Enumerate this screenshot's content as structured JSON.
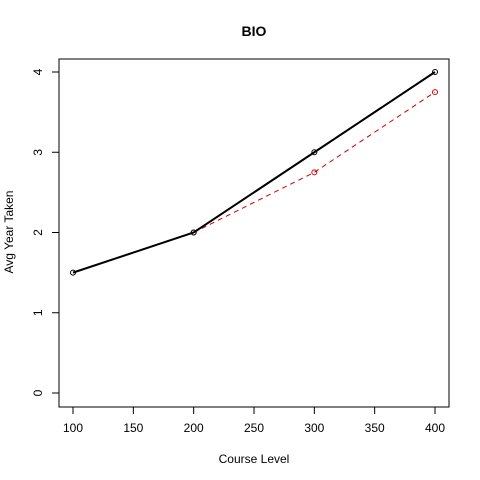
{
  "chart_data": {
    "type": "line",
    "title": "BIO",
    "xlabel": "Course Level",
    "ylabel": "Avg Year Taken",
    "x": [
      100,
      200,
      300,
      400
    ],
    "xlim": [
      100,
      400
    ],
    "ylim": [
      0,
      4
    ],
    "xticks": [
      "100",
      "150",
      "200",
      "250",
      "300",
      "350",
      "400"
    ],
    "yticks": [
      "0",
      "1",
      "2",
      "3",
      "4"
    ],
    "grid": false,
    "series": [
      {
        "values": [
          1.5,
          2.0,
          3.0,
          4.0
        ],
        "color": "#000000",
        "style": "solid",
        "marker": "open-circle"
      },
      {
        "values": [
          null,
          2.0,
          2.75,
          3.75
        ],
        "color": "#cc0000",
        "style": "dashed",
        "marker": "open-circle"
      }
    ]
  }
}
